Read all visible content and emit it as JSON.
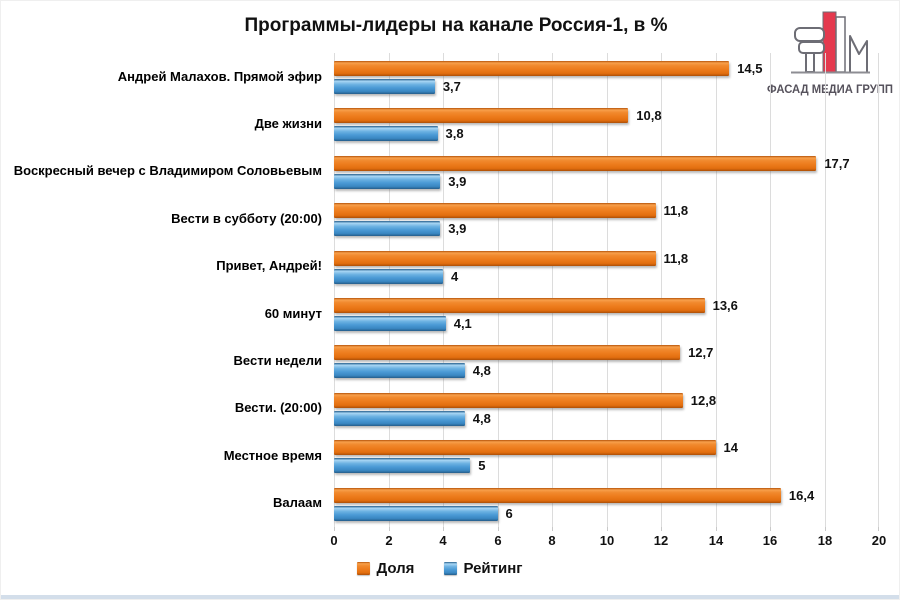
{
  "title": "Программы-лидеры на канале Россия-1, в %",
  "logo": {
    "text": "ФАСАД МЕДИА ГРУПП",
    "accent_color": "#e4394e",
    "outline_color": "#6d6d75",
    "text_color": "#56525c"
  },
  "colors": {
    "share": "#ED7C1D",
    "rating": "#4C9BD6",
    "gridline": "#dcdcdc"
  },
  "chart_data": {
    "type": "bar",
    "orientation": "horizontal",
    "title": "Программы-лидеры на канале Россия-1, в %",
    "xlabel": "",
    "ylabel": "",
    "xlim": [
      0,
      20
    ],
    "xticks": [
      0,
      2,
      4,
      6,
      8,
      10,
      12,
      14,
      16,
      18,
      20
    ],
    "grid": true,
    "legend_position": "bottom",
    "categories": [
      "Андрей Малахов. Прямой эфир",
      "Две жизни",
      "Воскресный вечер с Владимиром Соловьевым",
      "Вести в субботу (20:00)",
      "Привет, Андрей!",
      "60 минут",
      "Вести недели",
      "Вести. (20:00)",
      "Местное время",
      "Валаам"
    ],
    "series": [
      {
        "name": "Доля",
        "color": "#ED7C1D",
        "values": [
          14.5,
          10.8,
          17.7,
          11.8,
          11.8,
          13.6,
          12.7,
          12.8,
          14,
          16.4
        ],
        "labels": [
          "14,5",
          "10,8",
          "17,7",
          "11,8",
          "11,8",
          "13,6",
          "12,7",
          "12,8",
          "14",
          "16,4"
        ]
      },
      {
        "name": "Рейтинг",
        "color": "#4C9BD6",
        "values": [
          3.7,
          3.8,
          3.9,
          3.9,
          4,
          4.1,
          4.8,
          4.8,
          5,
          6
        ],
        "labels": [
          "3,7",
          "3,8",
          "3,9",
          "3,9",
          "4",
          "4,1",
          "4,8",
          "4,8",
          "5",
          "6"
        ]
      }
    ]
  }
}
